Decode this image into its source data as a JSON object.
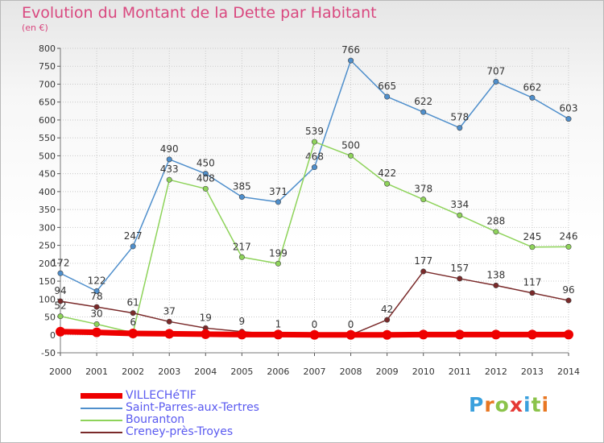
{
  "chart_data": {
    "type": "line",
    "title": "Evolution du Montant de la Dette par Habitant",
    "subtitle": "(en €)",
    "x": [
      "2000",
      "2001",
      "2002",
      "2003",
      "2004",
      "2005",
      "2006",
      "2007",
      "2008",
      "2009",
      "2010",
      "2011",
      "2012",
      "2013",
      "2014"
    ],
    "ylim": [
      -50,
      800
    ],
    "yticks": [
      -50,
      0,
      50,
      100,
      150,
      200,
      250,
      300,
      350,
      400,
      450,
      500,
      550,
      600,
      650,
      700,
      750,
      800
    ],
    "grid": true,
    "legend_placement": "bottom-left",
    "series": [
      {
        "name": "VILLECHéTIF",
        "color": "#ee0000",
        "values": [
          9,
          7,
          4,
          3,
          2,
          1,
          1,
          0,
          0,
          0,
          1,
          1,
          1,
          1,
          1
        ],
        "labels": [
          "",
          "",
          "",
          "",
          "",
          "",
          "",
          "",
          "",
          "",
          "",
          "",
          "",
          "",
          ""
        ]
      },
      {
        "name": "Saint-Parres-aux-Tertres",
        "color": "#4f8fcc",
        "values": [
          172,
          122,
          247,
          490,
          450,
          385,
          371,
          468,
          766,
          665,
          622,
          578,
          707,
          662,
          603
        ],
        "labels": [
          "172",
          "122",
          "247",
          "490",
          "450",
          "385",
          "371",
          "468",
          "766",
          "665",
          "622",
          "578",
          "707",
          "662",
          "603"
        ]
      },
      {
        "name": "Bouranton",
        "color": "#8ed35a",
        "values": [
          52,
          30,
          6,
          433,
          408,
          217,
          199,
          539,
          500,
          422,
          378,
          334,
          288,
          245,
          246
        ],
        "labels": [
          "52",
          "30",
          "6",
          "433",
          "408",
          "217",
          "199",
          "539",
          "500",
          "422",
          "378",
          "334",
          "288",
          "245",
          "246"
        ]
      },
      {
        "name": "Creney-près-Troyes",
        "color": "#7a2a2a",
        "values": [
          94,
          78,
          61,
          37,
          19,
          9,
          1,
          0,
          0,
          42,
          177,
          157,
          138,
          117,
          96
        ],
        "labels": [
          "94",
          "78",
          "61",
          "37",
          "19",
          "9",
          "1",
          "0",
          "0",
          "42",
          "177",
          "157",
          "138",
          "117",
          "96"
        ]
      }
    ]
  },
  "logo": {
    "text": "Proxiti",
    "letter_colors": [
      "#3aa0dd",
      "#e87722",
      "#8bc34a",
      "#e53935",
      "#3aa0dd",
      "#8bc34a",
      "#e87722"
    ]
  }
}
